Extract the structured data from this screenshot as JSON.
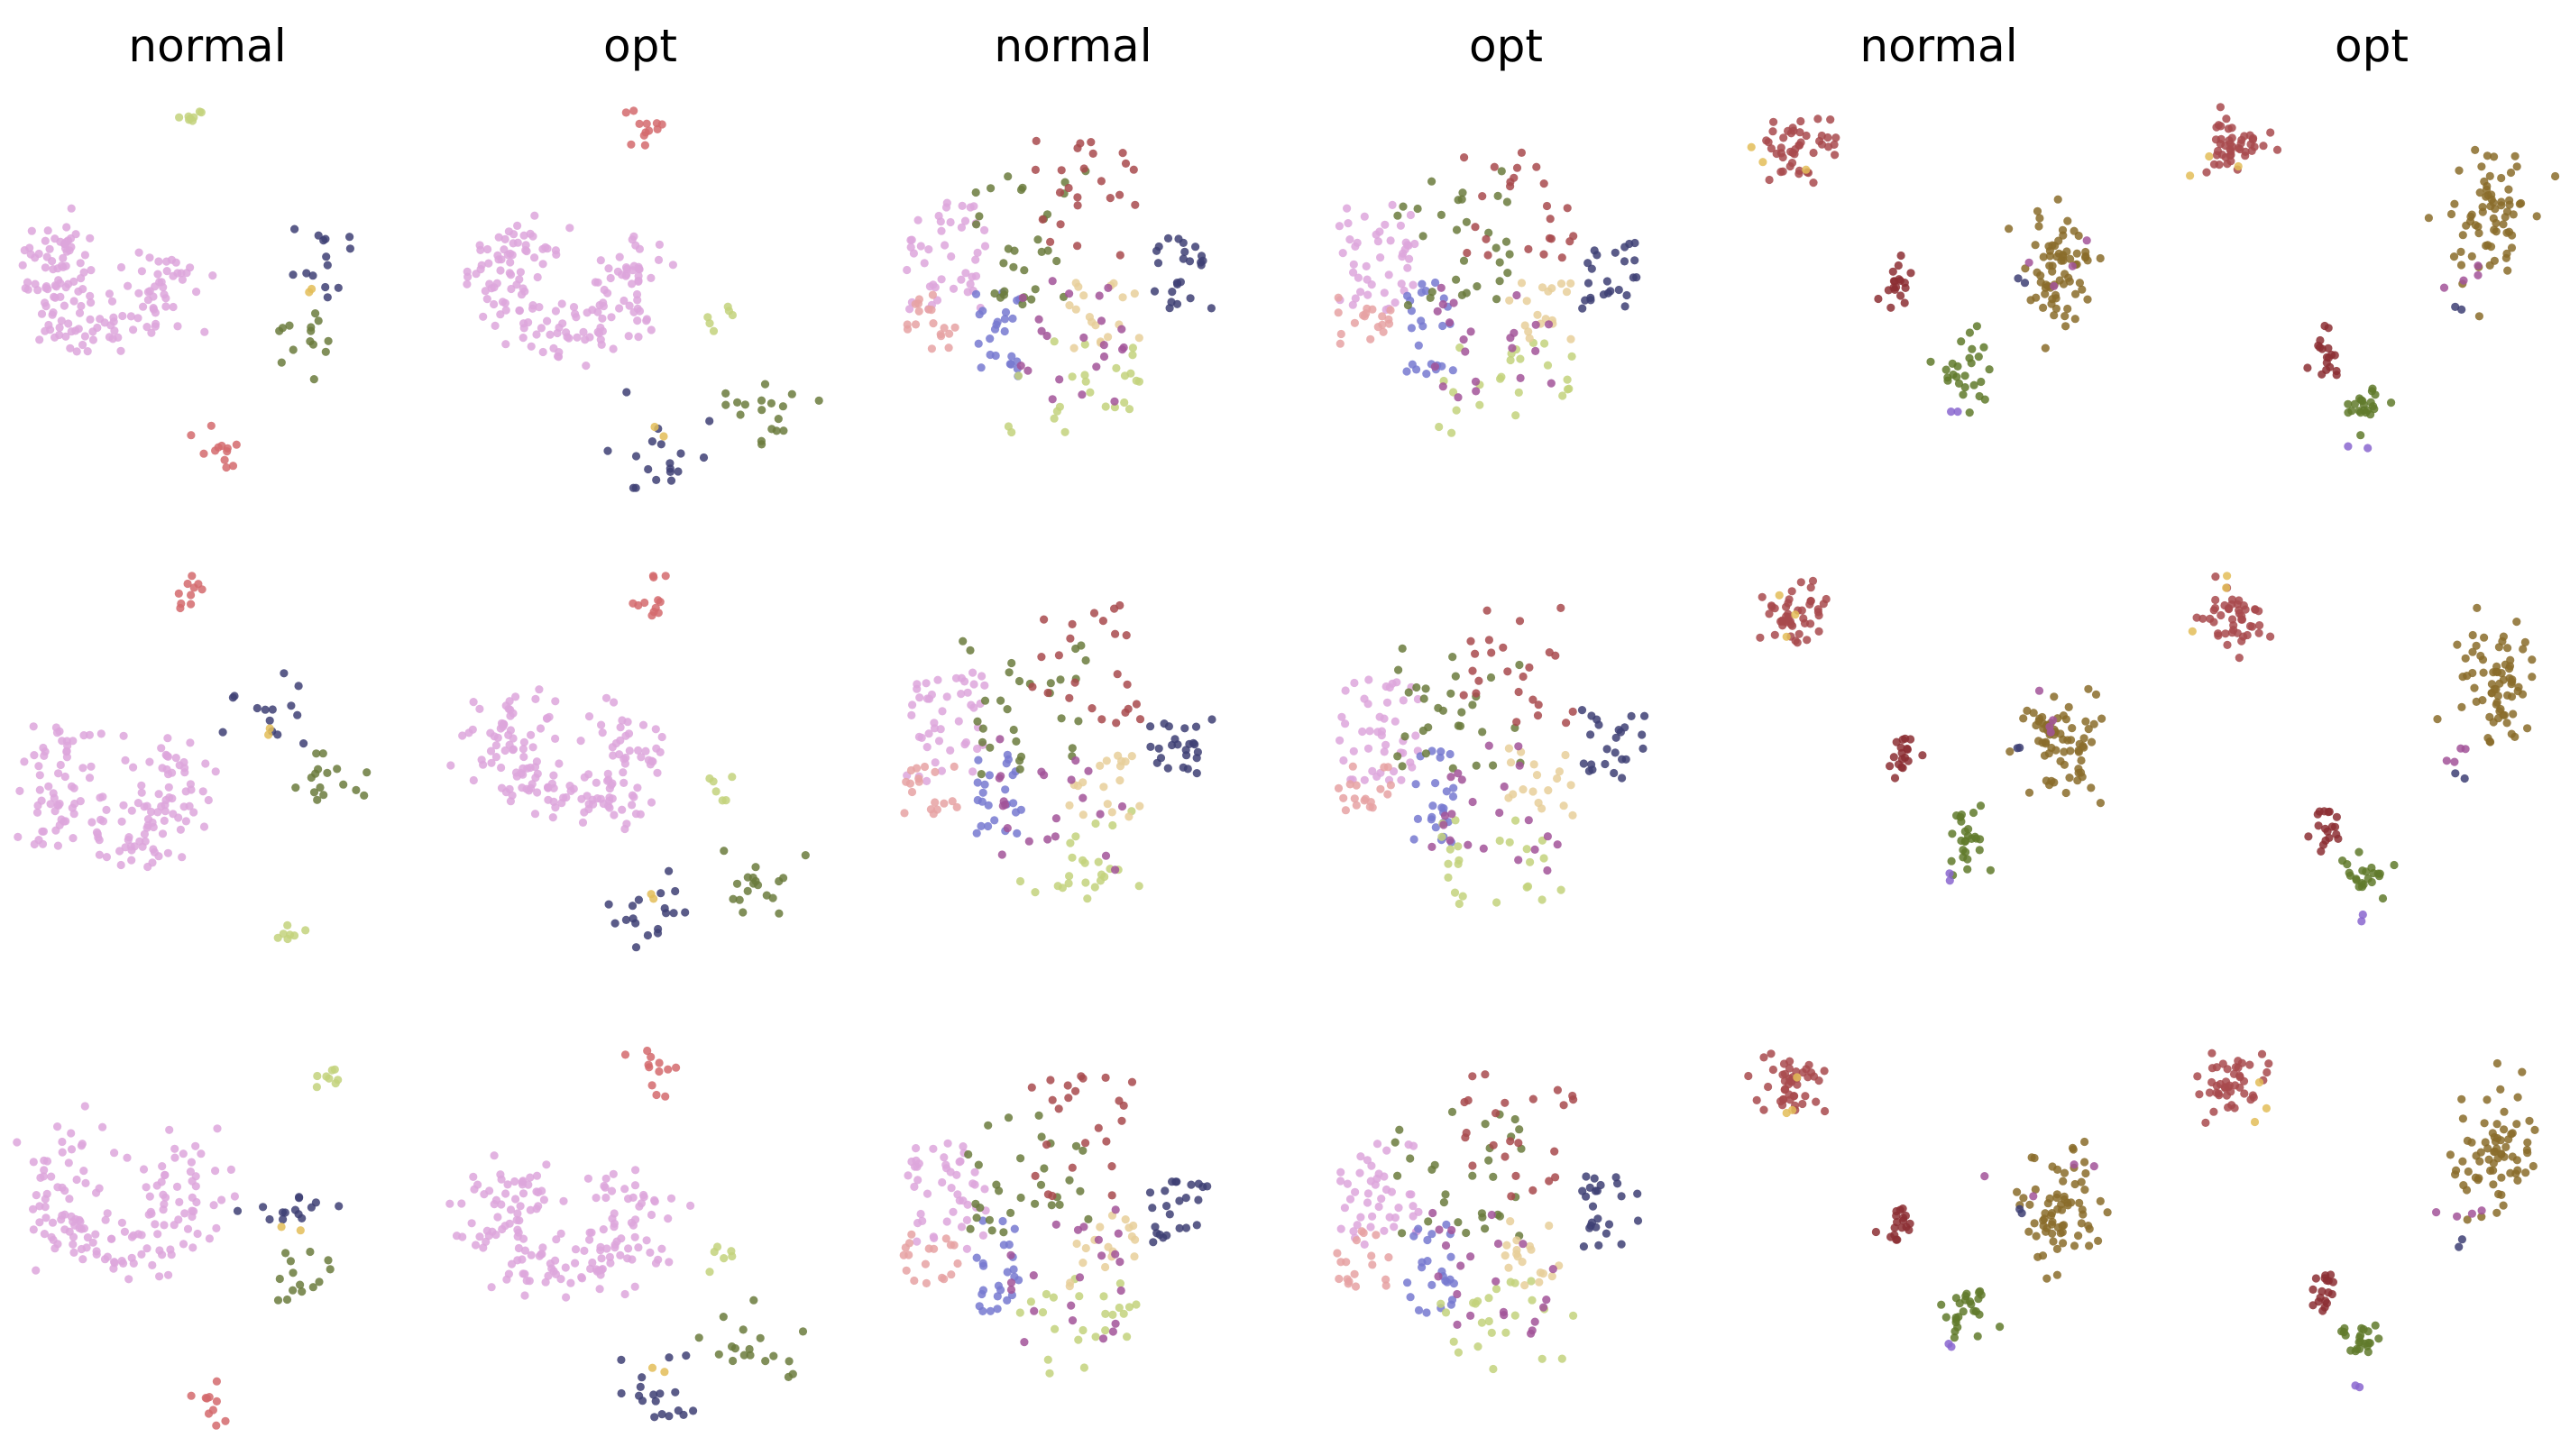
{
  "figure": {
    "column_titles": [
      "normal",
      "opt",
      "normal",
      "opt",
      "normal",
      "opt"
    ],
    "rows": 3,
    "columns": 6,
    "axes_visible": false,
    "point_opacity": 0.85
  },
  "palette": {
    "pink": "#dda6dc",
    "red": "#d46a6d",
    "navy": "#3e3f74",
    "olive": "#6b7b3d",
    "lime": "#c3d27d",
    "gold": "#e3bd58",
    "peach": "#e6a2a3",
    "blue": "#7779d0",
    "maroon": "#a84a4e",
    "tan": "#e7cf9a",
    "magenta": "#a25499",
    "brown": "#8a6c2a",
    "darkred": "#8c2f34",
    "green": "#607a2b",
    "violet": "#8a66cf"
  },
  "chart_data": [
    {
      "type": "scatter",
      "title": "normal",
      "row": 1,
      "col": 1,
      "group": "A",
      "variant": "normal",
      "seed": 11
    },
    {
      "type": "scatter",
      "title": "opt",
      "row": 1,
      "col": 2,
      "group": "A",
      "variant": "opt",
      "seed": 12
    },
    {
      "type": "scatter",
      "title": "normal",
      "row": 1,
      "col": 3,
      "group": "B",
      "variant": "normal",
      "seed": 13
    },
    {
      "type": "scatter",
      "title": "opt",
      "row": 1,
      "col": 4,
      "group": "B",
      "variant": "opt",
      "seed": 14
    },
    {
      "type": "scatter",
      "title": "normal",
      "row": 1,
      "col": 5,
      "group": "C",
      "variant": "normal",
      "seed": 15
    },
    {
      "type": "scatter",
      "title": "opt",
      "row": 1,
      "col": 6,
      "group": "C",
      "variant": "opt",
      "seed": 16
    },
    {
      "type": "scatter",
      "title": "",
      "row": 2,
      "col": 1,
      "group": "A",
      "variant": "normal2",
      "seed": 21
    },
    {
      "type": "scatter",
      "title": "",
      "row": 2,
      "col": 2,
      "group": "A",
      "variant": "opt",
      "seed": 22
    },
    {
      "type": "scatter",
      "title": "",
      "row": 2,
      "col": 3,
      "group": "B",
      "variant": "normal2",
      "seed": 23
    },
    {
      "type": "scatter",
      "title": "",
      "row": 2,
      "col": 4,
      "group": "B",
      "variant": "opt",
      "seed": 24
    },
    {
      "type": "scatter",
      "title": "",
      "row": 2,
      "col": 5,
      "group": "C",
      "variant": "normal",
      "seed": 25
    },
    {
      "type": "scatter",
      "title": "",
      "row": 2,
      "col": 6,
      "group": "C",
      "variant": "opt",
      "seed": 26
    },
    {
      "type": "scatter",
      "title": "",
      "row": 3,
      "col": 1,
      "group": "A",
      "variant": "normal3",
      "seed": 31
    },
    {
      "type": "scatter",
      "title": "",
      "row": 3,
      "col": 2,
      "group": "A",
      "variant": "opt",
      "seed": 32
    },
    {
      "type": "scatter",
      "title": "",
      "row": 3,
      "col": 3,
      "group": "B",
      "variant": "normal3",
      "seed": 33
    },
    {
      "type": "scatter",
      "title": "",
      "row": 3,
      "col": 4,
      "group": "B",
      "variant": "opt",
      "seed": 34
    },
    {
      "type": "scatter",
      "title": "",
      "row": 3,
      "col": 5,
      "group": "C",
      "variant": "normal",
      "seed": 35
    },
    {
      "type": "scatter",
      "title": "",
      "row": 3,
      "col": 6,
      "group": "C",
      "variant": "opt",
      "seed": 36
    }
  ]
}
